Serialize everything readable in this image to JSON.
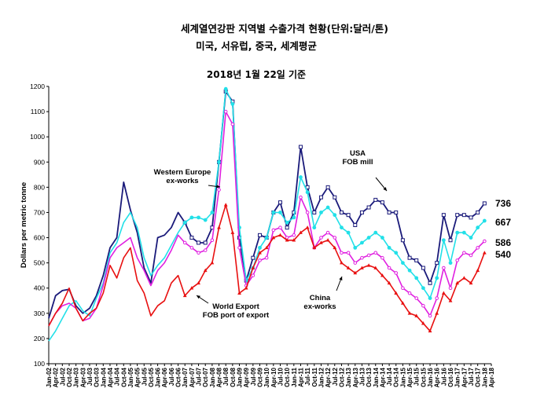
{
  "header": {
    "title": "세계열연강판 지역별 수출가격 현황(단위:달러/톤)",
    "subtitle": "미국, 서유럽, 중국, 세계평균",
    "date_note": "2018년 1월 22일 기준"
  },
  "chart_data": {
    "type": "line",
    "ylabel": "Dollars per metric tonne",
    "ylim": [
      100,
      1200
    ],
    "yticks": [
      100,
      200,
      300,
      400,
      500,
      600,
      700,
      800,
      900,
      1000,
      1100,
      1200
    ],
    "x_tick_labels": [
      "Jan-02",
      "Apr-02",
      "Jul-02",
      "Oct-02",
      "Jan-03",
      "Apr-03",
      "Jul-03",
      "Oct-03",
      "Jan-04",
      "Apr-04",
      "Jul-04",
      "Oct-04",
      "Jan-05",
      "Apr-05",
      "Jul-05",
      "Oct-05",
      "Jan-06",
      "Apr-06",
      "Jul-06",
      "Oct-06",
      "Jan-07",
      "Apr-07",
      "Jul-07",
      "Oct-07",
      "Jan-08",
      "Apr-08",
      "Jul-08",
      "Oct-08",
      "Jan-09",
      "Apr-09",
      "Jul-09",
      "Oct-09",
      "Jan-10",
      "Apr-10",
      "Jul-10",
      "Oct-10",
      "Jan-11",
      "Apr-11",
      "Jul-11",
      "Oct-11",
      "Jan-12",
      "Apr-12",
      "Jul-12",
      "Oct-12",
      "Jan-13",
      "Apr-13",
      "Jul-13",
      "Oct-13",
      "Jan-14",
      "Apr-14",
      "Jul-14",
      "Oct-14",
      "Jan-15",
      "Apr-15",
      "Jul-15",
      "Oct-15",
      "Jan-16",
      "Apr-16",
      "Jul-16",
      "Oct-16",
      "Jan-17",
      "Apr-17",
      "Jul-17",
      "Oct-17",
      "Jan-18",
      "Apr-18"
    ],
    "x_start": "2002-01",
    "months": [
      0,
      3,
      6,
      9,
      12,
      15,
      18,
      21,
      24,
      27,
      30,
      33,
      36,
      39,
      42,
      45,
      48,
      51,
      54,
      57,
      60,
      63,
      66,
      69,
      72,
      75,
      78,
      81,
      84,
      87,
      90,
      93,
      96,
      99,
      102,
      105,
      108,
      111,
      114,
      117,
      120,
      123,
      126,
      129,
      132,
      135,
      138,
      141,
      144,
      147,
      150,
      153,
      156,
      159,
      162,
      165,
      168,
      171,
      174,
      177,
      180,
      183,
      186,
      189,
      192
    ],
    "series": [
      {
        "name": "USA FOB mill",
        "label": "USA\nFOB mill",
        "color": "#1a1a7a",
        "end_label": "736",
        "values": [
          280,
          370,
          390,
          395,
          330,
          300,
          320,
          370,
          450,
          560,
          600,
          820,
          710,
          620,
          480,
          420,
          600,
          610,
          640,
          700,
          660,
          600,
          580,
          580,
          640,
          900,
          1180,
          1140,
          600,
          430,
          520,
          610,
          600,
          700,
          740,
          640,
          700,
          960,
          800,
          700,
          760,
          800,
          760,
          700,
          690,
          650,
          700,
          720,
          750,
          740,
          700,
          700,
          590,
          520,
          510,
          480,
          420,
          500,
          690,
          590,
          690,
          690,
          680,
          700,
          736
        ]
      },
      {
        "name": "Western Europe ex-works",
        "label": "Western Europe\nex-works",
        "color": "#22e0e8",
        "end_label": "667",
        "values": [
          190,
          230,
          280,
          330,
          350,
          310,
          290,
          360,
          420,
          540,
          580,
          660,
          700,
          640,
          520,
          450,
          490,
          520,
          570,
          620,
          660,
          680,
          680,
          670,
          700,
          900,
          1190,
          1130,
          640,
          430,
          480,
          560,
          600,
          700,
          700,
          660,
          680,
          840,
          780,
          640,
          700,
          720,
          690,
          640,
          620,
          560,
          580,
          600,
          620,
          600,
          560,
          540,
          500,
          470,
          440,
          400,
          360,
          440,
          590,
          500,
          620,
          620,
          600,
          640,
          667
        ]
      },
      {
        "name": "World Export FOB port of export",
        "label": "World Export\nFOB port of export",
        "color": "#e020e0",
        "end_label": "586",
        "values": [
          250,
          300,
          330,
          340,
          320,
          270,
          280,
          320,
          410,
          520,
          560,
          580,
          600,
          520,
          470,
          410,
          470,
          500,
          550,
          610,
          580,
          560,
          540,
          550,
          590,
          790,
          1100,
          1050,
          560,
          410,
          450,
          510,
          520,
          630,
          640,
          600,
          610,
          760,
          700,
          560,
          600,
          620,
          600,
          540,
          540,
          500,
          520,
          530,
          540,
          520,
          480,
          460,
          400,
          380,
          360,
          330,
          290,
          360,
          480,
          400,
          510,
          540,
          530,
          560,
          586
        ]
      },
      {
        "name": "China ex-works",
        "label": "China\nex-works",
        "color": "#e81010",
        "end_label": "540",
        "values": [
          250,
          300,
          340,
          400,
          320,
          270,
          300,
          320,
          380,
          490,
          440,
          520,
          560,
          430,
          380,
          290,
          330,
          350,
          420,
          450,
          370,
          400,
          420,
          470,
          500,
          640,
          730,
          620,
          380,
          400,
          480,
          540,
          560,
          600,
          610,
          590,
          590,
          620,
          640,
          560,
          580,
          590,
          560,
          500,
          480,
          460,
          480,
          490,
          480,
          450,
          420,
          380,
          340,
          300,
          290,
          260,
          230,
          300,
          380,
          350,
          420,
          440,
          420,
          470,
          540
        ]
      }
    ],
    "annotations": [
      {
        "text_lines": [
          "USA",
          "FOB mill"
        ],
        "series": "USA FOB mill"
      },
      {
        "text_lines": [
          "Western Europe",
          "ex-works"
        ],
        "series": "Western Europe ex-works"
      },
      {
        "text_lines": [
          "World Export",
          "FOB port of export"
        ],
        "series": "World Export FOB port of export"
      },
      {
        "text_lines": [
          "China",
          "ex-works"
        ],
        "series": "China ex-works"
      }
    ],
    "grid": false
  }
}
